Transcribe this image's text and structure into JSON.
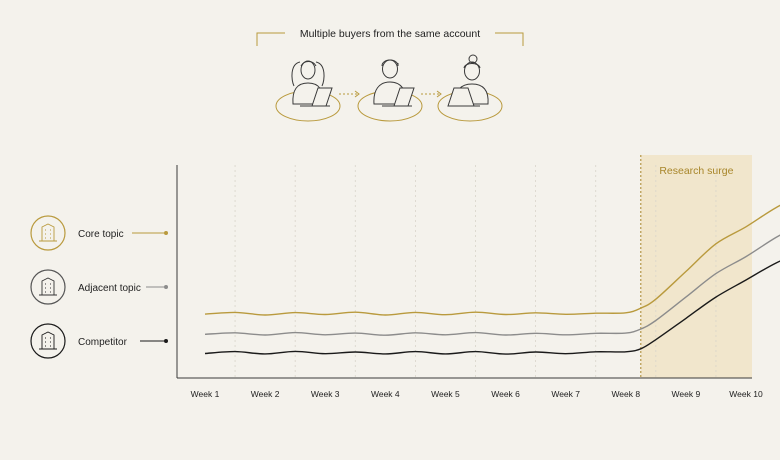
{
  "header": {
    "title": "Multiple buyers from the same account",
    "people": [
      {
        "icon": "woman-laptop-icon"
      },
      {
        "icon": "man-laptop-icon"
      },
      {
        "icon": "woman-bun-laptop-icon"
      }
    ]
  },
  "legend": [
    {
      "label": "Core topic",
      "icon": "building-icon",
      "color": "#b99a3d"
    },
    {
      "label": "Adjacent topic",
      "icon": "building-icon",
      "color": "#8c8c8c"
    },
    {
      "label": "Competitor",
      "icon": "building-icon",
      "color": "#1a1a1a"
    }
  ],
  "chart_data": {
    "type": "line",
    "xlabel": "",
    "ylabel": "",
    "grid": "vertical dashed",
    "categories": [
      "Week 1",
      "Week 2",
      "Week 3",
      "Week 4",
      "Week 5",
      "Week 6",
      "Week 7",
      "Week 8",
      "Week 9",
      "Week 10"
    ],
    "x": [
      0,
      0.5,
      1,
      1.5,
      2,
      2.5,
      3,
      3.5,
      4,
      4.5,
      5,
      5.5,
      6,
      6.5,
      7,
      7.25,
      7.5,
      8,
      8.5,
      9,
      9.5,
      10
    ],
    "ylim": [
      0,
      100
    ],
    "series": [
      {
        "name": "Core topic",
        "color": "#b99a3d",
        "values": [
          30,
          30.8,
          29.6,
          30.7,
          29.8,
          30.9,
          29.6,
          30.8,
          29.7,
          30.9,
          29.8,
          30.6,
          29.9,
          30.4,
          30.6,
          32.8,
          37,
          50,
          63,
          71,
          80,
          87
        ]
      },
      {
        "name": "Adjacent topic",
        "color": "#8c8c8c",
        "values": [
          20.5,
          21.2,
          20.2,
          21.3,
          20.3,
          21.1,
          20.1,
          21.2,
          20.3,
          21.3,
          20.2,
          21,
          20.3,
          21,
          21.1,
          23,
          27,
          38,
          49,
          57,
          66,
          73.5
        ]
      },
      {
        "name": "Competitor",
        "color": "#1a1a1a",
        "values": [
          11.5,
          12.4,
          11.3,
          12.5,
          11.4,
          12.2,
          11.3,
          12.4,
          11.3,
          12.4,
          11.2,
          12.2,
          11.4,
          12.3,
          12.3,
          13.7,
          18,
          28,
          38,
          46,
          54,
          60
        ]
      }
    ],
    "annotations": [
      {
        "label": "Research surge",
        "x_start": 7.25,
        "x_end": 10,
        "fill": "#f1e6cc",
        "color": "#a8862a"
      }
    ]
  }
}
